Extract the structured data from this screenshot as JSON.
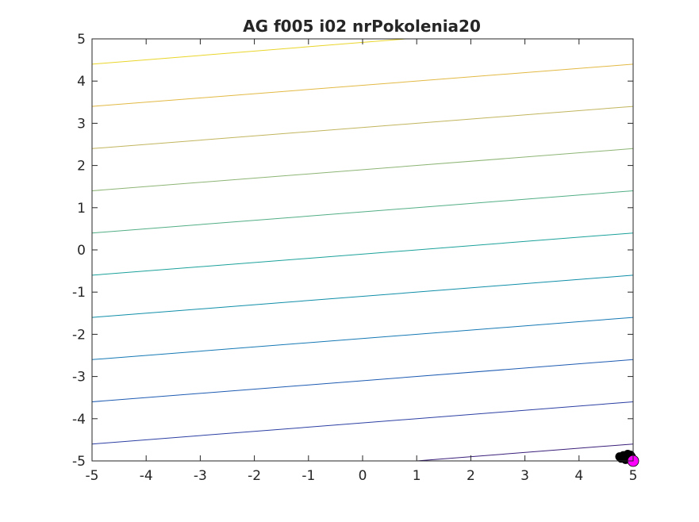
{
  "chart_data": {
    "type": "contour",
    "title": "AG f005 i02 nrPokolenia20",
    "xlabel": "",
    "ylabel": "",
    "xlim": [
      -5,
      5
    ],
    "ylim": [
      -5,
      5
    ],
    "x_ticks": [
      -5,
      -4,
      -3,
      -2,
      -1,
      0,
      1,
      2,
      3,
      4,
      5
    ],
    "y_ticks": [
      -5,
      -4,
      -3,
      -2,
      -1,
      0,
      1,
      2,
      3,
      4,
      5
    ],
    "x_tick_labels": [
      "-5",
      "-4",
      "-3",
      "-2",
      "-1",
      "0",
      "1",
      "2",
      "3",
      "4",
      "5"
    ],
    "y_tick_labels": [
      "-5",
      "-4",
      "-3",
      "-2",
      "-1",
      "0",
      "1",
      "2",
      "3",
      "4",
      "5"
    ],
    "grid": false,
    "colormap": "parula",
    "contour_lines": [
      {
        "x": [
          1.0,
          5.0
        ],
        "y": [
          -5.0,
          -4.6
        ],
        "color": "#3a1f7a"
      },
      {
        "x": [
          -5.0,
          5.0
        ],
        "y": [
          -4.6,
          -3.6
        ],
        "color": "#2c3fa3"
      },
      {
        "x": [
          -5.0,
          5.0
        ],
        "y": [
          -3.6,
          -2.6
        ],
        "color": "#1d5bb2"
      },
      {
        "x": [
          -5.0,
          5.0
        ],
        "y": [
          -2.6,
          -1.6
        ],
        "color": "#1578b4"
      },
      {
        "x": [
          -5.0,
          5.0
        ],
        "y": [
          -1.6,
          -0.6
        ],
        "color": "#0f8ea8"
      },
      {
        "x": [
          -5.0,
          5.0
        ],
        "y": [
          -0.6,
          0.4
        ],
        "color": "#1ba19a"
      },
      {
        "x": [
          -5.0,
          5.0
        ],
        "y": [
          0.4,
          1.4
        ],
        "color": "#52ae85"
      },
      {
        "x": [
          -5.0,
          5.0
        ],
        "y": [
          1.4,
          2.4
        ],
        "color": "#8db575"
      },
      {
        "x": [
          -5.0,
          5.0
        ],
        "y": [
          2.4,
          3.4
        ],
        "color": "#c1b55e"
      },
      {
        "x": [
          -5.0,
          5.0
        ],
        "y": [
          3.4,
          4.4
        ],
        "color": "#e2b944"
      },
      {
        "x": [
          -5.0,
          0.8
        ],
        "y": [
          4.4,
          5.0
        ],
        "color": "#e9d52a"
      }
    ],
    "population_points": [
      {
        "x": 4.85,
        "y": -4.9
      },
      {
        "x": 4.9,
        "y": -4.88
      },
      {
        "x": 4.95,
        "y": -4.86
      },
      {
        "x": 4.8,
        "y": -4.93
      },
      {
        "x": 4.88,
        "y": -4.95
      },
      {
        "x": 4.75,
        "y": -4.9
      },
      {
        "x": 4.93,
        "y": -4.92
      },
      {
        "x": 4.82,
        "y": -4.87
      },
      {
        "x": 4.97,
        "y": -4.9
      },
      {
        "x": 4.78,
        "y": -4.94
      },
      {
        "x": 4.9,
        "y": -4.84
      },
      {
        "x": 4.86,
        "y": -4.97
      }
    ],
    "population_color": "#000000",
    "best_point": {
      "x": 5.0,
      "y": -5.0,
      "color": "#ff00ff"
    }
  }
}
